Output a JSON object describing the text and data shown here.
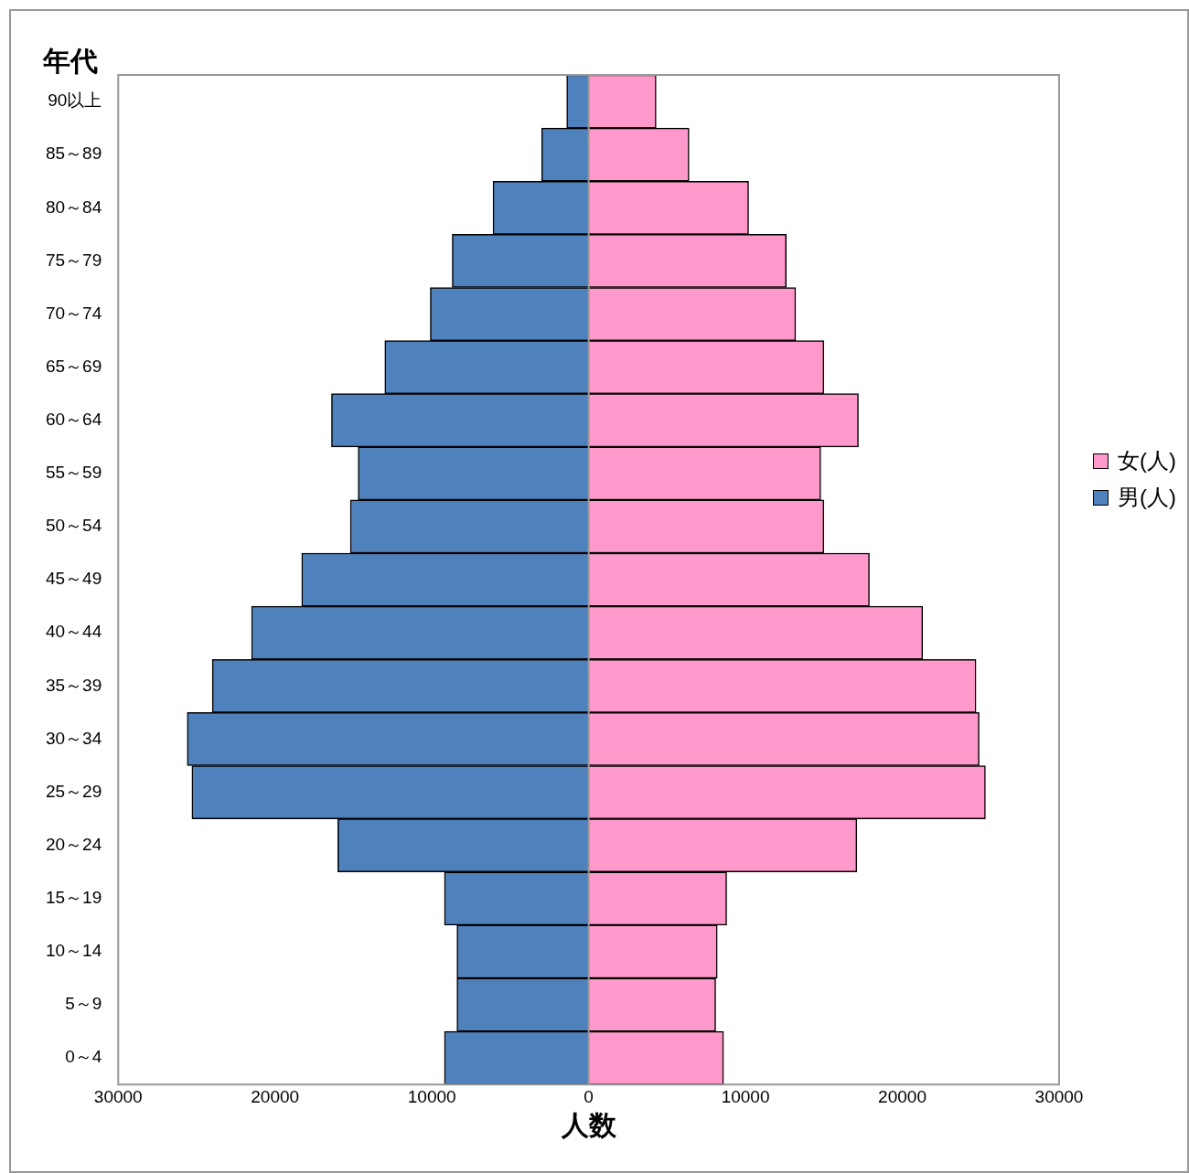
{
  "chart_data": {
    "type": "bar",
    "orientation": "horizontal",
    "stacked": true,
    "ylabel": "年代",
    "xlabel": "人数",
    "categories": [
      "90以上",
      "85～89",
      "80～84",
      "75～79",
      "70～74",
      "65～69",
      "60～64",
      "55～59",
      "50～54",
      "45～49",
      "40～44",
      "35～39",
      "30～34",
      "25～29",
      "20～24",
      "15～19",
      "10～14",
      "5～9",
      "0～4"
    ],
    "series": [
      {
        "name": "女(人)",
        "color": "#ff99cc",
        "values": [
          4300,
          6400,
          10200,
          12600,
          13200,
          15000,
          17200,
          14800,
          15000,
          17900,
          21300,
          24700,
          24900,
          25300,
          17100,
          8800,
          8200,
          8100,
          8600
        ]
      },
      {
        "name": "男(人)",
        "color": "#4f81bd",
        "values": [
          -1400,
          -3000,
          -6100,
          -8700,
          -10100,
          -13000,
          -16400,
          -14700,
          -15200,
          -18300,
          -21500,
          -24000,
          -25600,
          -25300,
          -16000,
          -9200,
          -8400,
          -8400,
          -9200
        ]
      }
    ],
    "xlim": [
      -30000,
      30000
    ],
    "xticks": [
      {
        "value": -30000,
        "label": "30000"
      },
      {
        "value": -20000,
        "label": "20000"
      },
      {
        "value": -10000,
        "label": "10000"
      },
      0,
      10000,
      20000,
      30000
    ],
    "ref_lines": [
      {
        "axis": "x",
        "value": 0,
        "color": "#999999"
      }
    ],
    "grid": false,
    "legend": "right"
  }
}
